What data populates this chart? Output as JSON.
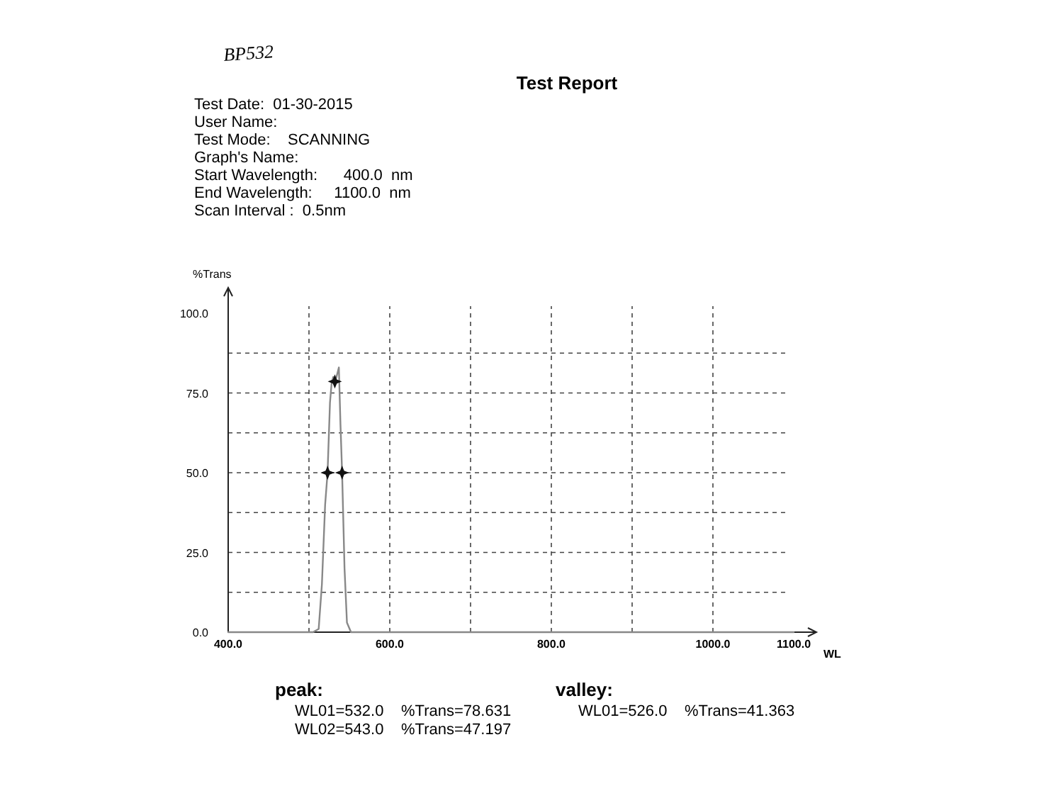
{
  "chart_data": {
    "type": "line",
    "title": "Test Report",
    "xlabel": "WL",
    "ylabel": "%Trans",
    "annotations": [
      "BP532",
      "Test Date:  01-30-2015",
      "User Name:",
      "Test Mode:    SCANNING",
      "Graph's Name:",
      "Start Wavelength:      400.0  nm",
      "End Wavelength:     1100.0  nm",
      "Scan Interval :  0.5nm",
      "peak:",
      "WL01=532.0",
      "%Trans=78.631",
      "WL02=543.0",
      "%Trans=47.197",
      "valley:",
      "WL01=526.0",
      "%Trans=41.363"
    ],
    "xlim": [
      400,
      1100
    ],
    "ylim": [
      0,
      100
    ],
    "xticks": [
      {
        "value": 400,
        "label": "400.0"
      },
      {
        "value": 500,
        "label": null
      },
      {
        "value": 600,
        "label": "600.0"
      },
      {
        "value": 700,
        "label": null
      },
      {
        "value": 800,
        "label": "800.0"
      },
      {
        "value": 900,
        "label": null
      },
      {
        "value": 1000,
        "label": "1000.0"
      },
      {
        "value": 1100,
        "label": "1100.0"
      }
    ],
    "yticks": [
      {
        "value": 0,
        "label": "0.0"
      },
      {
        "value": 12.5,
        "label": null
      },
      {
        "value": 25,
        "label": "25.0"
      },
      {
        "value": 37.5,
        "label": null
      },
      {
        "value": 50,
        "label": "50.0"
      },
      {
        "value": 62.5,
        "label": null
      },
      {
        "value": 75,
        "label": "75.0"
      },
      {
        "value": 87.5,
        "label": null
      },
      {
        "value": 100,
        "label": "100.0"
      }
    ],
    "grid": true,
    "line_style": "solid",
    "series": [
      {
        "color": "#888888",
        "x": [
          400,
          505,
          512,
          516,
          520,
          523,
          526,
          528,
          530,
          532,
          534,
          537,
          539,
          541,
          544,
          547,
          552,
          1100
        ],
        "values": [
          0,
          0,
          1,
          15,
          40,
          50,
          72,
          78,
          80,
          78.6,
          80,
          83,
          65,
          50,
          20,
          3,
          0,
          0
        ]
      },
      {
        "type": "scatter",
        "marker": "star",
        "color": "#111111",
        "x": [
          532,
          523,
          541
        ],
        "values": [
          78.6,
          50,
          50
        ]
      }
    ]
  }
}
